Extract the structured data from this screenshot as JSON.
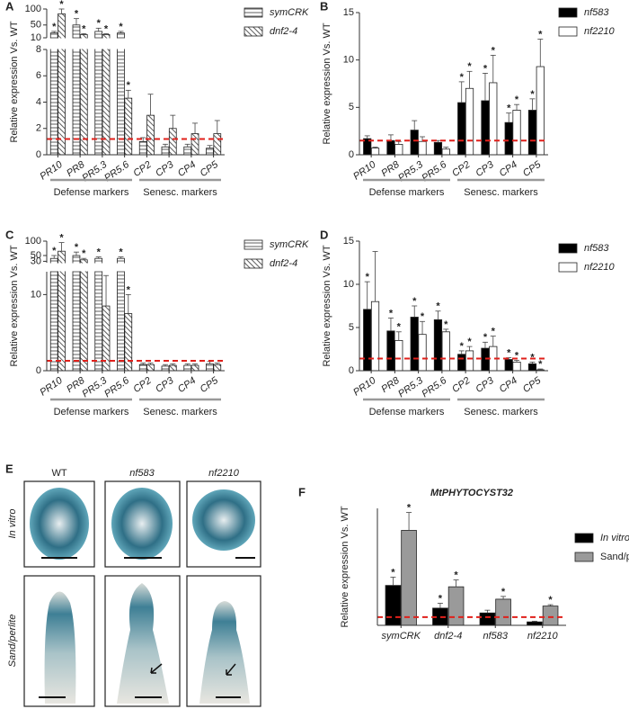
{
  "chart_data": [
    {
      "type": "bar",
      "panel": "A",
      "ylabel": "Relative expression Vs. WT",
      "categories": [
        "PR10",
        "PR8",
        "PR5.3",
        "PR5.6",
        "CP2",
        "CP3",
        "CP4",
        "CP5"
      ],
      "groups": [
        "Defense markers",
        "Senesc. markers"
      ],
      "series": [
        {
          "name": "symCRK",
          "color": "#ffffff",
          "hatch": "horizontal",
          "values": [
            25,
            50,
            30,
            25,
            1.0,
            0.6,
            0.6,
            0.5
          ],
          "errors": [
            5,
            20,
            10,
            5,
            0.3,
            0.2,
            0.2,
            0.2
          ],
          "significance": [
            "*",
            "*",
            "*",
            "*",
            null,
            null,
            null,
            null
          ]
        },
        {
          "name": "dnf2-4",
          "color": "#ffffff",
          "hatch": "diagonal",
          "values": [
            85,
            20,
            20,
            4.3,
            3.0,
            2.0,
            1.6,
            1.6
          ],
          "errors": [
            15,
            3,
            3,
            0.6,
            1.6,
            1.0,
            0.8,
            1.0
          ],
          "significance": [
            "*",
            "*",
            "*",
            "*",
            null,
            null,
            null,
            null
          ]
        }
      ],
      "ylim": [
        0,
        100
      ],
      "ybreak": [
        8,
        10
      ],
      "yticks": [
        0,
        2,
        4,
        6,
        8,
        10,
        50,
        100
      ],
      "reference_line": 1.2,
      "reference_color": "#e0201b"
    },
    {
      "type": "bar",
      "panel": "B",
      "ylabel": "Relative expression Vs. WT",
      "categories": [
        "PR10",
        "PR8",
        "PR5.3",
        "PR5.6",
        "CP2",
        "CP3",
        "CP4",
        "CP5"
      ],
      "groups": [
        "Defense markers",
        "Senesc. markers"
      ],
      "series": [
        {
          "name": "nf583",
          "color": "#000000",
          "values": [
            1.7,
            1.5,
            2.6,
            1.3,
            5.5,
            5.7,
            3.4,
            4.7
          ],
          "errors": [
            0.3,
            0.6,
            1.0,
            0.2,
            2.2,
            2.9,
            1.0,
            1.2
          ],
          "significance": [
            null,
            null,
            null,
            null,
            "*",
            "*",
            "*",
            "*"
          ]
        },
        {
          "name": "nf2210",
          "color": "#ffffff",
          "values": [
            0.7,
            1.1,
            1.4,
            0.6,
            7.0,
            7.6,
            4.7,
            9.3
          ],
          "errors": [
            0.1,
            0.3,
            0.5,
            0.2,
            1.8,
            2.9,
            0.6,
            2.9
          ],
          "significance": [
            null,
            null,
            null,
            null,
            "*",
            "*",
            "*",
            "*"
          ]
        }
      ],
      "ylim": [
        0,
        15
      ],
      "yticks": [
        0,
        5,
        10,
        15
      ],
      "reference_line": 1.5,
      "reference_color": "#e0201b"
    },
    {
      "type": "bar",
      "panel": "C",
      "ylabel": "Relative expression Vs. WT",
      "categories": [
        "PR10",
        "PR8",
        "PR5.3",
        "PR5.6",
        "CP2",
        "CP3",
        "CP4",
        "CP5"
      ],
      "groups": [
        "Defense markers",
        "Senesc. markers"
      ],
      "series": [
        {
          "name": "symCRK",
          "color": "#ffffff",
          "hatch": "horizontal",
          "values": [
            40,
            50,
            40,
            40,
            0.8,
            0.6,
            0.7,
            0.9
          ],
          "errors": [
            10,
            12,
            5,
            5,
            0.2,
            0.2,
            0.2,
            0.3
          ],
          "significance": [
            "*",
            "*",
            "*",
            "*",
            null,
            null,
            null,
            null
          ]
        },
        {
          "name": "dnf2-4",
          "color": "#ffffff",
          "hatch": "diagonal",
          "values": [
            65,
            35,
            8.5,
            7.5,
            0.8,
            0.7,
            0.7,
            0.8
          ],
          "errors": [
            30,
            5,
            4,
            2.5,
            0.2,
            0.2,
            0.2,
            0.2
          ],
          "significance": [
            "*",
            "*",
            "*",
            "*",
            null,
            null,
            null,
            null
          ]
        }
      ],
      "ylim": [
        0,
        100
      ],
      "ybreak": [
        13,
        25
      ],
      "yticks": [
        0,
        10,
        30,
        50,
        100
      ],
      "reference_line": 1.3,
      "reference_color": "#e0201b"
    },
    {
      "type": "bar",
      "panel": "D",
      "ylabel": "Relative expression Vs. WT",
      "categories": [
        "PR10",
        "PR8",
        "PR5.3",
        "PR5.6",
        "CP2",
        "CP3",
        "CP4",
        "CP5"
      ],
      "groups": [
        "Defense markers",
        "Senesc. markers"
      ],
      "series": [
        {
          "name": "nf583",
          "color": "#000000",
          "values": [
            7.1,
            4.6,
            6.2,
            5.9,
            1.9,
            2.6,
            1.3,
            0.8
          ],
          "errors": [
            3.2,
            1.5,
            1.3,
            1.0,
            0.4,
            0.7,
            0.2,
            0.2
          ],
          "significance": [
            "*",
            "*",
            "*",
            "*",
            "*",
            "*",
            "*",
            "*"
          ]
        },
        {
          "name": "nf2210",
          "color": "#ffffff",
          "values": [
            8.0,
            3.5,
            4.2,
            4.5,
            2.3,
            2.8,
            1.0,
            0.1
          ],
          "errors": [
            5.8,
            1.0,
            1.5,
            0.3,
            0.5,
            1.2,
            0.2,
            0.1
          ],
          "significance": [
            null,
            "*",
            "*",
            "*",
            "*",
            "*",
            "*",
            "*"
          ]
        }
      ],
      "ylim": [
        0,
        15
      ],
      "yticks": [
        0,
        5,
        10,
        15
      ],
      "reference_line": 1.4,
      "reference_color": "#e0201b"
    },
    {
      "type": "bar",
      "panel": "F",
      "title": "MtPHYTOCYST32",
      "ylabel": "Relative expression Vs. WT",
      "categories": [
        "symCRK",
        "dnf2-4",
        "nf583",
        "nf2210"
      ],
      "series": [
        {
          "name": "In vitro",
          "color": "#000000",
          "values": [
            5.8,
            2.5,
            1.8,
            0.5
          ],
          "errors": [
            1.2,
            0.7,
            0.4,
            0.1
          ],
          "significance": [
            "*",
            "*",
            null,
            null
          ]
        },
        {
          "name": "Sand/perlite",
          "color": "#9a9a9a",
          "values": [
            13.8,
            5.6,
            3.8,
            2.8
          ],
          "errors": [
            2.6,
            1.0,
            0.4,
            0.2
          ],
          "significance": [
            "*",
            "*",
            "*",
            "*"
          ]
        }
      ],
      "ylim": [
        0,
        17
      ],
      "reference_line": 1.2,
      "reference_color": "#e0201b"
    }
  ],
  "image_panel": {
    "panel": "E",
    "columns": [
      "WT",
      "nf583",
      "nf2210"
    ],
    "rows": [
      "In vitro",
      "Sand/perlite"
    ]
  }
}
